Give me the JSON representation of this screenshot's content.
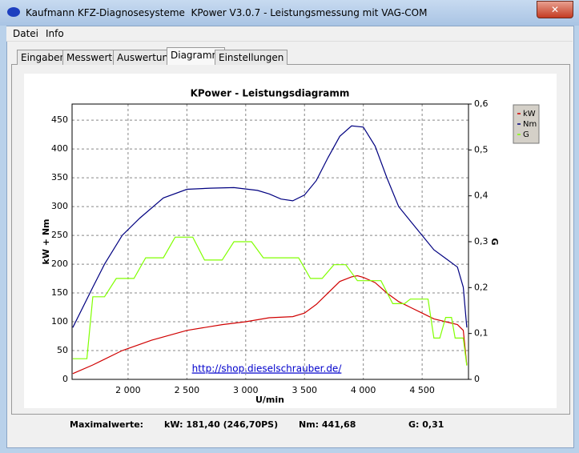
{
  "window": {
    "title": "Kaufmann KFZ-Diagnosesysteme  KPower V3.0.7 - Leistungsmessung mit VAG-COM"
  },
  "menu": [
    "Datei",
    "Info"
  ],
  "tabs": [
    "Eingaben",
    "Messwerte",
    "Auswertung",
    "Diagramm",
    "Einstellungen"
  ],
  "chart_data": {
    "type": "line",
    "title": "KPower - Leistungsdiagramm",
    "x_label": "U/min",
    "y_label": "kW + Nm",
    "y2_label": "G",
    "annotation": "http://shop.dieselschrauber.de/",
    "xlim": [
      1524,
      4894
    ],
    "ylim": [
      0,
      478
    ],
    "y2lim": [
      0,
      0.6
    ],
    "grid": true,
    "xticks": [
      {
        "value": 2000,
        "label": "2 000"
      },
      {
        "value": 2500,
        "label": "2 500"
      },
      {
        "value": 3000,
        "label": "3 000"
      },
      {
        "value": 3500,
        "label": "3 500"
      },
      {
        "value": 4000,
        "label": "4 000"
      },
      {
        "value": 4500,
        "label": "4 500"
      }
    ],
    "yticks": [
      0,
      50,
      100,
      150,
      200,
      250,
      300,
      350,
      400,
      450
    ],
    "y2ticks": [
      0,
      {
        "value": 0.1,
        "label": "0,1"
      },
      {
        "value": 0.2,
        "label": "0,2"
      },
      {
        "value": 0.3,
        "label": "0,3"
      },
      {
        "value": 0.4,
        "label": "0,4"
      },
      {
        "value": 0.5,
        "label": "0,5"
      },
      {
        "value": 0.6,
        "label": "0,6"
      }
    ],
    "series": [
      {
        "name": "kW",
        "color": "#d00000",
        "x": [
          1530,
          1700,
          1950,
          2200,
          2500,
          2800,
          3000,
          3200,
          3400,
          3500,
          3600,
          3700,
          3800,
          3900,
          3950,
          4000,
          4100,
          4200,
          4300,
          4400,
          4500,
          4600,
          4700,
          4800,
          4850,
          4880
        ],
        "values": [
          10,
          25,
          50,
          68,
          85,
          95,
          100,
          107,
          109,
          115,
          130,
          150,
          170,
          178,
          180,
          177,
          168,
          150,
          135,
          125,
          115,
          105,
          100,
          95,
          85,
          25
        ]
      },
      {
        "name": "Nm",
        "color": "#000080",
        "x": [
          1530,
          1700,
          1800,
          1950,
          2100,
          2300,
          2500,
          2700,
          2900,
          3100,
          3200,
          3300,
          3400,
          3500,
          3600,
          3700,
          3800,
          3900,
          4000,
          4100,
          4200,
          4300,
          4400,
          4500,
          4600,
          4700,
          4800,
          4850,
          4880
        ],
        "values": [
          90,
          160,
          200,
          250,
          280,
          315,
          330,
          332,
          333,
          328,
          322,
          313,
          310,
          320,
          345,
          385,
          422,
          440,
          438,
          405,
          350,
          300,
          275,
          250,
          225,
          210,
          195,
          160,
          90
        ]
      },
      {
        "name": "G",
        "color": "#80ff00",
        "axis": "y2",
        "x": [
          1530,
          1650,
          1700,
          1800,
          1900,
          2050,
          2150,
          2300,
          2400,
          2550,
          2650,
          2800,
          2900,
          3050,
          3150,
          3450,
          3550,
          3650,
          3750,
          3850,
          3950,
          4150,
          4250,
          4350,
          4400,
          4550,
          4600,
          4650,
          4700,
          4750,
          4780,
          4850,
          4880
        ],
        "values": [
          0.045,
          0.045,
          0.18,
          0.18,
          0.22,
          0.22,
          0.265,
          0.265,
          0.31,
          0.31,
          0.26,
          0.26,
          0.3,
          0.3,
          0.265,
          0.265,
          0.22,
          0.22,
          0.25,
          0.25,
          0.215,
          0.215,
          0.165,
          0.165,
          0.175,
          0.175,
          0.09,
          0.09,
          0.135,
          0.135,
          0.09,
          0.09,
          0.03
        ]
      }
    ]
  },
  "footer": {
    "label": "Maximalwerte:",
    "items": [
      "kW: 181,40 (246,70PS)",
      "Nm: 441,68",
      "G: 0,31"
    ]
  }
}
